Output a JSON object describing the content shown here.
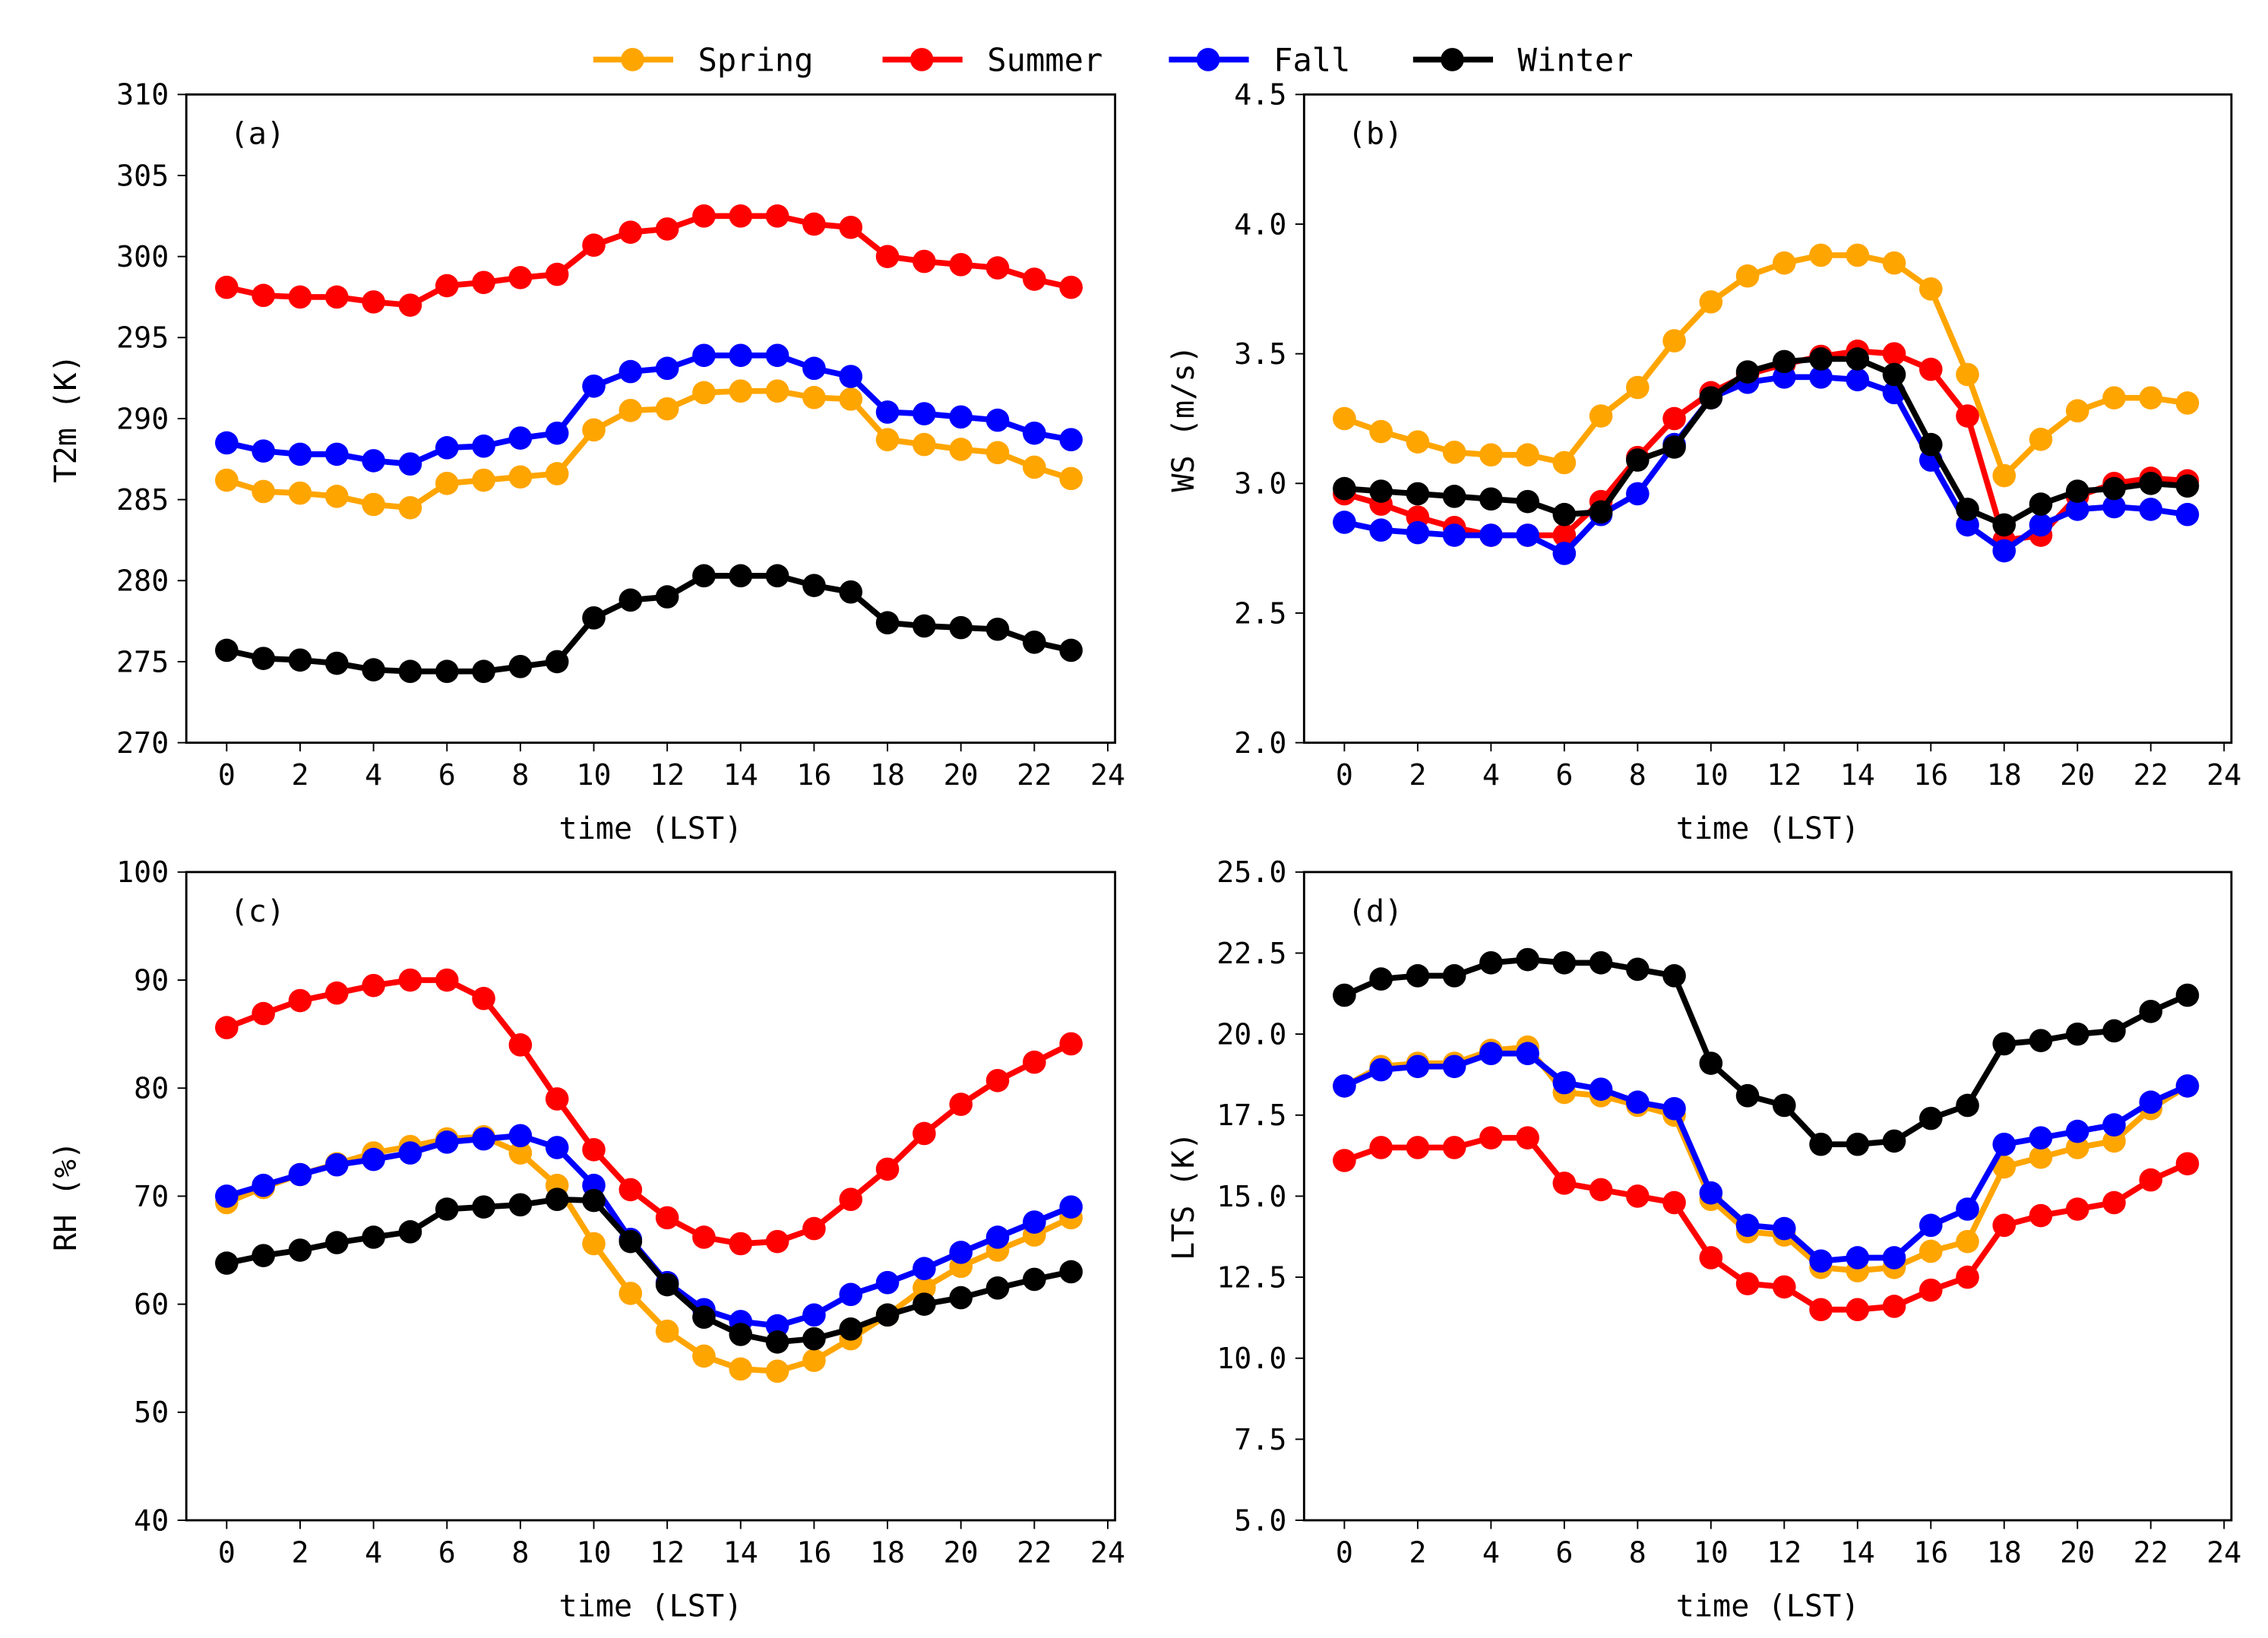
{
  "legend": [
    {
      "name": "Spring",
      "color": "#FFA500"
    },
    {
      "name": "Summer",
      "color": "#FF0000"
    },
    {
      "name": "Fall",
      "color": "#0000FF"
    },
    {
      "name": "Winter",
      "color": "#000000"
    }
  ],
  "chart_data": [
    {
      "type": "line",
      "panel_label": "(a)",
      "xlabel": "time (LST)",
      "ylabel": "T2m (K)",
      "xlim": [
        -1.1,
        24.2
      ],
      "ylim": [
        270,
        310
      ],
      "xticks": [
        0,
        2,
        4,
        6,
        8,
        10,
        12,
        14,
        16,
        18,
        20,
        22,
        24
      ],
      "xtick_labels": [
        "0",
        "2",
        "4",
        "6",
        "8",
        "10",
        "12",
        "14",
        "16",
        "18",
        "20",
        "22",
        "24"
      ],
      "yticks": [
        270,
        275,
        280,
        285,
        290,
        295,
        300,
        305,
        310
      ],
      "ytick_labels": [
        "270",
        "275",
        "280",
        "285",
        "290",
        "295",
        "300",
        "305",
        "310"
      ],
      "x": [
        0,
        1,
        2,
        3,
        4,
        5,
        6,
        7,
        8,
        9,
        10,
        11,
        12,
        13,
        14,
        15,
        16,
        17,
        18,
        19,
        20,
        21,
        22,
        23
      ],
      "series": [
        {
          "name": "Spring",
          "values": [
            286.2,
            285.5,
            285.4,
            285.2,
            284.7,
            284.5,
            286.0,
            286.2,
            286.4,
            286.6,
            289.3,
            290.5,
            290.6,
            291.6,
            291.7,
            291.7,
            291.3,
            291.2,
            288.7,
            288.4,
            288.1,
            287.9,
            287.0,
            286.3
          ]
        },
        {
          "name": "Summer",
          "values": [
            298.1,
            297.6,
            297.5,
            297.5,
            297.2,
            297.0,
            298.2,
            298.4,
            298.7,
            298.9,
            300.7,
            301.5,
            301.7,
            302.5,
            302.5,
            302.5,
            302.0,
            301.8,
            300.0,
            299.7,
            299.5,
            299.3,
            298.6,
            298.1
          ]
        },
        {
          "name": "Fall",
          "values": [
            288.5,
            288.0,
            287.8,
            287.8,
            287.4,
            287.2,
            288.2,
            288.3,
            288.8,
            289.1,
            292.0,
            292.9,
            293.1,
            293.9,
            293.9,
            293.9,
            293.1,
            292.6,
            290.4,
            290.3,
            290.1,
            289.9,
            289.1,
            288.7
          ]
        },
        {
          "name": "Winter",
          "values": [
            275.7,
            275.2,
            275.1,
            274.9,
            274.5,
            274.4,
            274.4,
            274.4,
            274.7,
            275.0,
            277.7,
            278.8,
            279.0,
            280.3,
            280.3,
            280.3,
            279.7,
            279.3,
            277.4,
            277.2,
            277.1,
            277.0,
            276.2,
            275.7
          ]
        }
      ]
    },
    {
      "type": "line",
      "panel_label": "(b)",
      "xlabel": "time (LST)",
      "ylabel": "WS (m/s)",
      "xlim": [
        -1.1,
        24.2
      ],
      "ylim": [
        2.0,
        4.5
      ],
      "xticks": [
        0,
        2,
        4,
        6,
        8,
        10,
        12,
        14,
        16,
        18,
        20,
        22,
        24
      ],
      "xtick_labels": [
        "0",
        "2",
        "4",
        "6",
        "8",
        "10",
        "12",
        "14",
        "16",
        "18",
        "20",
        "22",
        "24"
      ],
      "yticks": [
        2.0,
        2.5,
        3.0,
        3.5,
        4.0,
        4.5
      ],
      "ytick_labels": [
        "2.0",
        "2.5",
        "3.0",
        "3.5",
        "4.0",
        "4.5"
      ],
      "x": [
        0,
        1,
        2,
        3,
        4,
        5,
        6,
        7,
        8,
        9,
        10,
        11,
        12,
        13,
        14,
        15,
        16,
        17,
        18,
        19,
        20,
        21,
        22,
        23
      ],
      "series": [
        {
          "name": "Spring",
          "values": [
            3.25,
            3.2,
            3.16,
            3.12,
            3.11,
            3.11,
            3.08,
            3.26,
            3.37,
            3.55,
            3.7,
            3.8,
            3.85,
            3.88,
            3.88,
            3.85,
            3.75,
            3.42,
            3.03,
            3.17,
            3.28,
            3.33,
            3.33,
            3.31
          ]
        },
        {
          "name": "Summer",
          "values": [
            2.96,
            2.92,
            2.87,
            2.83,
            2.8,
            2.8,
            2.8,
            2.93,
            3.1,
            3.25,
            3.35,
            3.42,
            3.46,
            3.49,
            3.51,
            3.5,
            3.44,
            3.26,
            2.78,
            2.8,
            2.95,
            3.0,
            3.02,
            3.01
          ]
        },
        {
          "name": "Fall",
          "values": [
            2.85,
            2.82,
            2.81,
            2.8,
            2.8,
            2.8,
            2.73,
            2.88,
            2.96,
            3.15,
            3.33,
            3.39,
            3.41,
            3.41,
            3.4,
            3.35,
            3.09,
            2.84,
            2.74,
            2.84,
            2.9,
            2.91,
            2.9,
            2.88
          ]
        },
        {
          "name": "Winter",
          "values": [
            2.98,
            2.97,
            2.96,
            2.95,
            2.94,
            2.93,
            2.88,
            2.89,
            3.09,
            3.14,
            3.33,
            3.43,
            3.47,
            3.48,
            3.48,
            3.42,
            3.15,
            2.9,
            2.84,
            2.92,
            2.97,
            2.98,
            3.0,
            2.99
          ]
        }
      ]
    },
    {
      "type": "line",
      "panel_label": "(c)",
      "xlabel": "time (LST)",
      "ylabel": "RH (%)",
      "xlim": [
        -1.1,
        24.2
      ],
      "ylim": [
        40,
        100
      ],
      "xticks": [
        0,
        2,
        4,
        6,
        8,
        10,
        12,
        14,
        16,
        18,
        20,
        22,
        24
      ],
      "xtick_labels": [
        "0",
        "2",
        "4",
        "6",
        "8",
        "10",
        "12",
        "14",
        "16",
        "18",
        "20",
        "22",
        "24"
      ],
      "yticks": [
        40,
        50,
        60,
        70,
        80,
        90,
        100
      ],
      "ytick_labels": [
        "40",
        "50",
        "60",
        "70",
        "80",
        "90",
        "100"
      ],
      "x": [
        0,
        1,
        2,
        3,
        4,
        5,
        6,
        7,
        8,
        9,
        10,
        11,
        12,
        13,
        14,
        15,
        16,
        17,
        18,
        19,
        20,
        21,
        22,
        23
      ],
      "series": [
        {
          "name": "Spring",
          "values": [
            69.4,
            70.8,
            72.0,
            73.0,
            74.0,
            74.6,
            75.3,
            75.5,
            74.0,
            71.0,
            65.6,
            61.0,
            57.5,
            55.2,
            54.0,
            53.8,
            54.8,
            56.8,
            59.0,
            61.5,
            63.5,
            65.0,
            66.4,
            68.0
          ]
        },
        {
          "name": "Summer",
          "values": [
            85.6,
            86.9,
            88.1,
            88.8,
            89.5,
            90.0,
            90.0,
            88.3,
            84.0,
            79.0,
            74.3,
            70.6,
            68.0,
            66.2,
            65.6,
            65.8,
            67.0,
            69.7,
            72.5,
            75.8,
            78.5,
            80.7,
            82.4,
            84.1
          ]
        },
        {
          "name": "Fall",
          "values": [
            70.0,
            71.0,
            72.0,
            72.9,
            73.4,
            74.0,
            75.0,
            75.3,
            75.6,
            74.5,
            71.0,
            66.0,
            62.0,
            59.5,
            58.4,
            58.0,
            59.0,
            60.9,
            62.0,
            63.3,
            64.8,
            66.2,
            67.6,
            69.0
          ]
        },
        {
          "name": "Winter",
          "values": [
            63.8,
            64.5,
            65.0,
            65.7,
            66.2,
            66.7,
            68.8,
            69.0,
            69.2,
            69.7,
            69.6,
            65.8,
            61.8,
            58.8,
            57.2,
            56.5,
            56.8,
            57.7,
            59.0,
            60.0,
            60.6,
            61.5,
            62.3,
            63.0
          ]
        }
      ]
    },
    {
      "type": "line",
      "panel_label": "(d)",
      "xlabel": "time (LST)",
      "ylabel": "LTS (K)",
      "xlim": [
        -1.1,
        24.2
      ],
      "ylim": [
        5.0,
        25.0
      ],
      "xticks": [
        0,
        2,
        4,
        6,
        8,
        10,
        12,
        14,
        16,
        18,
        20,
        22,
        24
      ],
      "xtick_labels": [
        "0",
        "2",
        "4",
        "6",
        "8",
        "10",
        "12",
        "14",
        "16",
        "18",
        "20",
        "22",
        "24"
      ],
      "yticks": [
        5.0,
        7.5,
        10.0,
        12.5,
        15.0,
        17.5,
        20.0,
        22.5,
        25.0
      ],
      "ytick_labels": [
        "5.0",
        "7.5",
        "10.0",
        "12.5",
        "15.0",
        "17.5",
        "20.0",
        "22.5",
        "25.0"
      ],
      "x": [
        0,
        1,
        2,
        3,
        4,
        5,
        6,
        7,
        8,
        9,
        10,
        11,
        12,
        13,
        14,
        15,
        16,
        17,
        18,
        19,
        20,
        21,
        22,
        23
      ],
      "series": [
        {
          "name": "Spring",
          "values": [
            18.4,
            19.0,
            19.1,
            19.1,
            19.5,
            19.6,
            18.2,
            18.1,
            17.8,
            17.5,
            14.9,
            13.9,
            13.8,
            12.8,
            12.7,
            12.8,
            13.3,
            13.6,
            15.9,
            16.2,
            16.5,
            16.7,
            17.7,
            18.4
          ]
        },
        {
          "name": "Summer",
          "values": [
            16.1,
            16.5,
            16.5,
            16.5,
            16.8,
            16.8,
            15.4,
            15.2,
            15.0,
            14.8,
            13.1,
            12.3,
            12.2,
            11.5,
            11.5,
            11.6,
            12.1,
            12.5,
            14.1,
            14.4,
            14.6,
            14.8,
            15.5,
            16.0
          ]
        },
        {
          "name": "Fall",
          "values": [
            18.4,
            18.9,
            19.0,
            19.0,
            19.4,
            19.4,
            18.5,
            18.3,
            17.9,
            17.7,
            15.1,
            14.1,
            14.0,
            13.0,
            13.1,
            13.1,
            14.1,
            14.6,
            16.6,
            16.8,
            17.0,
            17.2,
            17.9,
            18.4
          ]
        },
        {
          "name": "Winter",
          "values": [
            21.2,
            21.7,
            21.8,
            21.8,
            22.2,
            22.3,
            22.2,
            22.2,
            22.0,
            21.8,
            19.1,
            18.1,
            17.8,
            16.6,
            16.6,
            16.7,
            17.4,
            17.8,
            19.7,
            19.8,
            20.0,
            20.1,
            20.7,
            21.2
          ]
        }
      ]
    }
  ]
}
